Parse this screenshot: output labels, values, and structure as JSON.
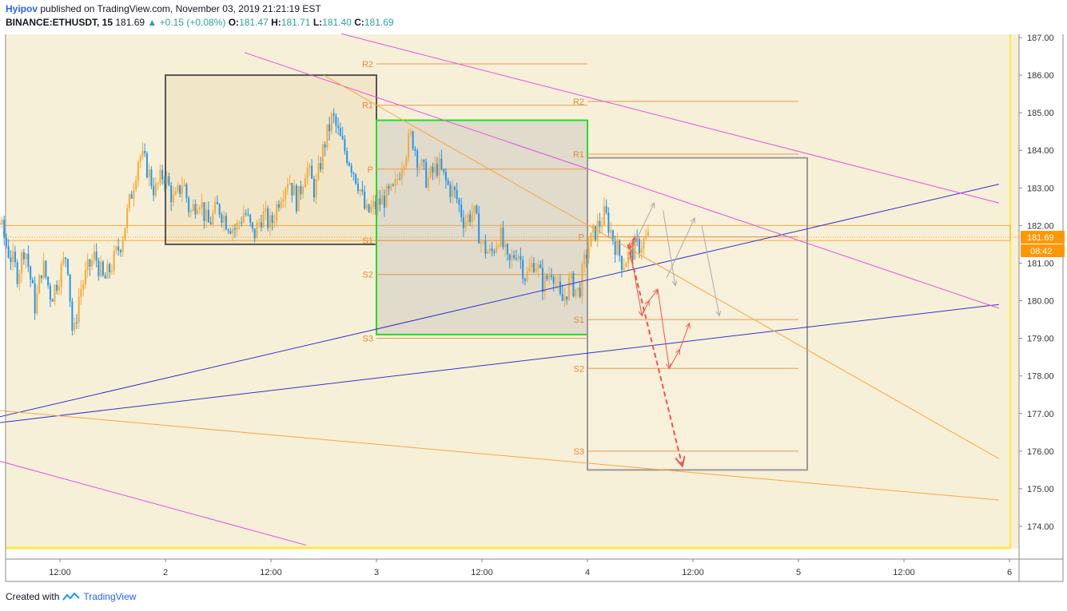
{
  "header": {
    "author": "Hyipov",
    "published": "published on TradingView.com, November 03, 2019 21:21:19 EST",
    "symbol": "BINANCE:ETHUSDT, 15",
    "last": "181.69",
    "change": "+0.15 (+0.08%)",
    "o_label": "O:",
    "o_value": "181.47",
    "h_label": "H:",
    "h_value": "181.71",
    "l_label": "L:",
    "l_value": "181.40",
    "c_label": "C:",
    "c_value": "181.69"
  },
  "footer": {
    "created_with": "Created with",
    "brand": "TradingView"
  },
  "colors": {
    "background": "#f7f0d8",
    "up_candle": "#f7a935",
    "down_candle": "#2196f3",
    "pivot_line": "#e8994e",
    "pivot_label": "#e08a3c",
    "blue_trend": "#3333cc",
    "magenta_trend": "#e052e0",
    "orange_trend": "#f5a742",
    "box_dark": "#555555",
    "box_green": "#22dd22",
    "box_gray": "#999999",
    "price_badge": "#ff9800",
    "yellow_border": "#ffeb3b",
    "scenario_red": "#ef5350",
    "scenario_gray": "#aaaaaa"
  },
  "chart_data": {
    "type": "candlestick",
    "y_axis": {
      "range": [
        173.3,
        187.2
      ],
      "ticks": [
        "187.00",
        "186.00",
        "185.00",
        "184.00",
        "183.00",
        "182.00",
        "181.00",
        "180.00",
        "179.00",
        "178.00",
        "177.00",
        "176.00",
        "175.00",
        "174.00"
      ]
    },
    "x_axis": {
      "ticks": [
        {
          "label": "12:00",
          "t": 12
        },
        {
          "label": "2",
          "t": 24
        },
        {
          "label": "12:00",
          "t": 36
        },
        {
          "label": "3",
          "t": 48
        },
        {
          "label": "12:00",
          "t": 60
        },
        {
          "label": "4",
          "t": 72
        },
        {
          "label": "12:00",
          "t": 84
        },
        {
          "label": "5",
          "t": 96
        },
        {
          "label": "12:00",
          "t": 108
        },
        {
          "label": "6",
          "t": 120
        }
      ]
    },
    "last_price": 181.69,
    "last_price_label": "181.69",
    "countdown_label": "08:42",
    "price_path": [
      [
        0.4,
        180.8
      ],
      [
        1.5,
        181.2
      ],
      [
        2.3,
        180.4
      ],
      [
        3.0,
        181.9
      ],
      [
        4.0,
        181.1
      ],
      [
        5.0,
        182.2
      ],
      [
        6.0,
        181.4
      ],
      [
        7.2,
        180.7
      ],
      [
        8.0,
        181.5
      ],
      [
        9.2,
        179.8
      ],
      [
        10.0,
        181.0
      ],
      [
        11.0,
        180.1
      ],
      [
        11.8,
        180.6
      ],
      [
        12.8,
        181.3
      ],
      [
        13.5,
        178.9
      ],
      [
        14.2,
        180.2
      ],
      [
        15.3,
        180.9
      ],
      [
        16.0,
        181.2
      ],
      [
        17.0,
        180.5
      ],
      [
        18.0,
        181.0
      ],
      [
        19.0,
        181.6
      ],
      [
        20.0,
        182.7
      ],
      [
        21.0,
        183.9
      ],
      [
        21.8,
        183.6
      ],
      [
        22.8,
        182.9
      ],
      [
        23.8,
        183.4
      ],
      [
        25.0,
        182.6
      ],
      [
        26.0,
        183.2
      ],
      [
        26.8,
        182.3
      ],
      [
        27.8,
        182.8
      ],
      [
        28.8,
        182.0
      ],
      [
        30.0,
        182.5
      ],
      [
        31.0,
        182.1
      ],
      [
        32.0,
        181.9
      ],
      [
        33.0,
        182.4
      ],
      [
        34.0,
        181.7
      ],
      [
        35.0,
        182.3
      ],
      [
        36.0,
        182.0
      ],
      [
        37.0,
        182.8
      ],
      [
        38.0,
        183.3
      ],
      [
        39.0,
        182.6
      ],
      [
        40.0,
        183.6
      ],
      [
        41.0,
        182.9
      ],
      [
        42.0,
        184.1
      ],
      [
        43.0,
        184.9
      ],
      [
        44.0,
        184.2
      ],
      [
        45.0,
        183.7
      ],
      [
        46.0,
        183.1
      ],
      [
        46.8,
        182.3
      ],
      [
        47.8,
        182.5
      ],
      [
        48.8,
        182.7
      ],
      [
        50.0,
        182.9
      ],
      [
        51.0,
        183.8
      ],
      [
        52.0,
        184.4
      ],
      [
        52.8,
        183.7
      ],
      [
        53.8,
        183.2
      ],
      [
        55.0,
        183.6
      ],
      [
        56.0,
        183.1
      ],
      [
        57.0,
        182.8
      ],
      [
        58.0,
        182.1
      ],
      [
        59.0,
        182.4
      ],
      [
        60.0,
        181.5
      ],
      [
        61.0,
        181.2
      ],
      [
        62.0,
        181.8
      ],
      [
        63.0,
        180.9
      ],
      [
        64.0,
        181.4
      ],
      [
        65.0,
        180.6
      ],
      [
        66.0,
        181.1
      ],
      [
        67.0,
        180.4
      ],
      [
        68.0,
        180.9
      ],
      [
        69.0,
        179.9
      ],
      [
        70.0,
        180.5
      ],
      [
        71.0,
        180.2
      ],
      [
        72.0,
        181.4
      ],
      [
        73.0,
        181.9
      ],
      [
        74.0,
        182.3
      ],
      [
        75.0,
        181.6
      ],
      [
        76.0,
        181.0
      ],
      [
        77.0,
        181.3
      ],
      [
        78.0,
        181.5
      ],
      [
        79.0,
        181.69
      ]
    ],
    "pivot_sets": [
      {
        "t_start": 48,
        "t_end": 72,
        "levels": [
          {
            "label": "R2",
            "value": 186.3
          },
          {
            "label": "R1",
            "value": 185.2
          },
          {
            "label": "P",
            "value": 183.5
          },
          {
            "label": "S1",
            "value": 181.6
          },
          {
            "label": "S2",
            "value": 180.7
          },
          {
            "label": "S3",
            "value": 179.0
          }
        ]
      },
      {
        "t_start": 72,
        "t_end": 96,
        "levels": [
          {
            "label": "R2",
            "value": 185.3
          },
          {
            "label": "R1",
            "value": 183.9
          },
          {
            "label": "P",
            "value": 181.7
          },
          {
            "label": "S1",
            "value": 179.5
          },
          {
            "label": "S2",
            "value": 178.2
          },
          {
            "label": "S3",
            "value": 176.0
          }
        ]
      }
    ],
    "boxes": [
      {
        "t1": 24,
        "t2": 48,
        "top": 186.0,
        "bottom": 181.5,
        "color": "dark"
      },
      {
        "t1": 48,
        "t2": 72,
        "top": 184.8,
        "bottom": 179.1,
        "color": "green"
      },
      {
        "t1": 72,
        "t2": 97,
        "top": 183.8,
        "bottom": 175.5,
        "color": "gray"
      }
    ],
    "trendlines": [
      {
        "color": "blue",
        "from": [
          -0.6,
          176.6
        ],
        "to": [
          118.8,
          183.1
        ]
      },
      {
        "color": "blue",
        "from": [
          -0.6,
          176.6
        ],
        "to": [
          118.8,
          179.9
        ]
      },
      {
        "color": "magenta",
        "from": [
          33,
          186.6
        ],
        "to": [
          118.8,
          179.8
        ]
      },
      {
        "color": "magenta",
        "from": [
          44,
          187.1
        ],
        "to": [
          118.8,
          182.6
        ]
      },
      {
        "color": "magenta",
        "from": [
          -0.6,
          176.1
        ],
        "to": [
          40,
          173.5
        ]
      },
      {
        "color": "orange",
        "from": [
          42,
          186.0
        ],
        "to": [
          118.8,
          175.8
        ]
      },
      {
        "color": "orange",
        "from": [
          -0.6,
          177.2
        ],
        "to": [
          118.8,
          174.7
        ]
      }
    ],
    "channel_band": {
      "top": 182.0,
      "bottom": 181.6
    }
  }
}
